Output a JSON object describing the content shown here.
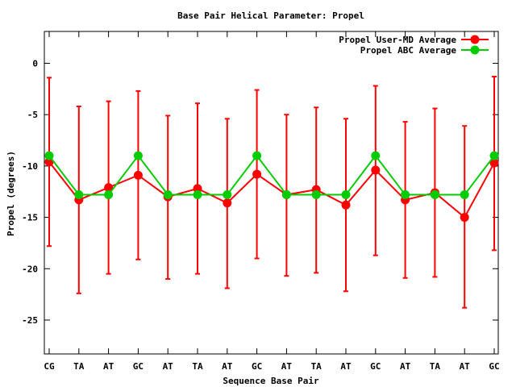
{
  "chart_data": {
    "type": "line",
    "title": "Base Pair Helical Parameter: Propel",
    "xlabel": "Sequence Base Pair",
    "ylabel": "Propel (degrees)",
    "categories": [
      "CG",
      "TA",
      "AT",
      "GC",
      "AT",
      "TA",
      "AT",
      "GC",
      "AT",
      "TA",
      "AT",
      "GC",
      "AT",
      "TA",
      "AT",
      "GC"
    ],
    "ylim": [
      -28.3,
      3.1
    ],
    "yticks": [
      0,
      -5,
      -10,
      -15,
      -20,
      -25
    ],
    "grid": false,
    "legend_position": "top-right",
    "series": [
      {
        "name": "Propel User-MD Average",
        "color": "#ff0000",
        "values": [
          -9.6,
          -13.3,
          -12.1,
          -10.9,
          -13.0,
          -12.2,
          -13.6,
          -10.8,
          -12.8,
          -12.3,
          -13.8,
          -10.4,
          -13.3,
          -12.6,
          -15.0,
          -9.7
        ],
        "error_low": [
          -17.8,
          -22.4,
          -20.5,
          -19.1,
          -21.0,
          -20.5,
          -21.9,
          -19.0,
          -20.7,
          -20.4,
          -22.2,
          -18.7,
          -20.9,
          -20.8,
          -23.8,
          -18.2
        ],
        "error_high": [
          -1.4,
          -4.2,
          -3.7,
          -2.7,
          -5.1,
          -3.9,
          -5.4,
          -2.6,
          -5.0,
          -4.3,
          -5.4,
          -2.2,
          -5.7,
          -4.4,
          -6.1,
          -1.3
        ]
      },
      {
        "name": "Propel ABC Average",
        "color": "#00cc00",
        "values": [
          -9.0,
          -12.8,
          -12.8,
          -9.0,
          -12.8,
          -12.8,
          -12.8,
          -9.0,
          -12.8,
          -12.8,
          -12.8,
          -9.0,
          -12.8,
          -12.8,
          -12.8,
          -9.0
        ]
      }
    ]
  }
}
